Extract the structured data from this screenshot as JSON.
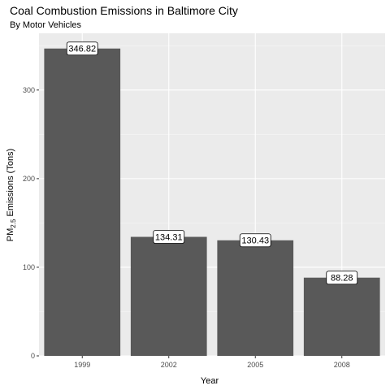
{
  "chart_data": {
    "type": "bar",
    "title": "Coal Combustion Emissions in Baltimore City",
    "subtitle": "By Motor Vehicles",
    "xlabel": "Year",
    "ylabel": {
      "prefix": "PM",
      "subscript": "2.5",
      "suffix": " Emissions (Tons)"
    },
    "categories": [
      "1999",
      "2002",
      "2005",
      "2008"
    ],
    "values": [
      346.82,
      134.31,
      130.43,
      88.28
    ],
    "value_labels": [
      "346.82",
      "134.31",
      "130.43",
      "88.28"
    ],
    "ylim": [
      0,
      364
    ],
    "y_ticks": [
      0,
      100,
      200,
      300
    ],
    "y_tick_labels": [
      "0",
      "100",
      "200",
      "300"
    ],
    "grid": true,
    "legend": "none",
    "colors": {
      "bar": "#595959",
      "panel_bg": "#ebebeb",
      "grid_major": "#ffffff",
      "grid_minor": "#f5f5f5",
      "label_fill": "#ffffff",
      "label_border": "#000000"
    }
  }
}
